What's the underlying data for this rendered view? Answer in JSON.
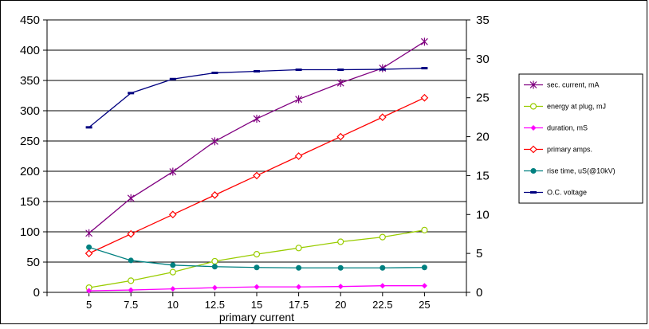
{
  "chart_data": {
    "type": "line",
    "title": "",
    "xlabel": "primary current",
    "ylabel": "",
    "y2label": "",
    "x": [
      "5",
      "7.5",
      "10",
      "12.5",
      "15",
      "17.5",
      "20",
      "22.5",
      "25"
    ],
    "x_slots": 10,
    "ylim": [
      0,
      450
    ],
    "y_ticks": [
      0,
      50,
      100,
      150,
      200,
      250,
      300,
      350,
      400,
      450
    ],
    "y2lim": [
      0,
      35
    ],
    "y2_ticks": [
      0,
      5,
      10,
      15,
      20,
      25,
      30,
      35
    ],
    "grid": "horizontal major",
    "legend_position": "right",
    "series": [
      {
        "name": "sec. current, mA",
        "axis": "right",
        "color": "#800080",
        "marker": "star",
        "values": [
          7.6,
          12.1,
          15.5,
          19.4,
          22.3,
          24.8,
          26.9,
          28.8,
          32.2
        ]
      },
      {
        "name": "energy at plug, mJ",
        "axis": "right",
        "color": "#99CC00",
        "marker": "circle-open",
        "values": [
          0.6,
          1.5,
          2.6,
          4.0,
          4.9,
          5.7,
          6.5,
          7.1,
          8.0
        ]
      },
      {
        "name": "duration, mS",
        "axis": "right",
        "color": "#FF00FF",
        "marker": "diamond",
        "values": [
          0.2,
          0.3,
          0.45,
          0.6,
          0.7,
          0.7,
          0.75,
          0.85,
          0.85
        ]
      },
      {
        "name": "primary amps.",
        "axis": "right",
        "color": "#FF0000",
        "marker": "diamond-open",
        "values": [
          5.0,
          7.5,
          10.0,
          12.5,
          15.0,
          17.5,
          20.0,
          22.5,
          25.0
        ]
      },
      {
        "name": "rise time, uS(@10kV)",
        "axis": "right",
        "color": "#008080",
        "marker": "circle",
        "values": [
          5.8,
          4.1,
          3.5,
          3.3,
          3.2,
          3.15,
          3.15,
          3.15,
          3.2
        ]
      },
      {
        "name": "O.C. voltage",
        "axis": "right",
        "color": "#000080",
        "marker": "dash",
        "values": [
          21.2,
          25.6,
          27.4,
          28.2,
          28.4,
          28.6,
          28.6,
          28.65,
          28.8
        ]
      }
    ]
  }
}
